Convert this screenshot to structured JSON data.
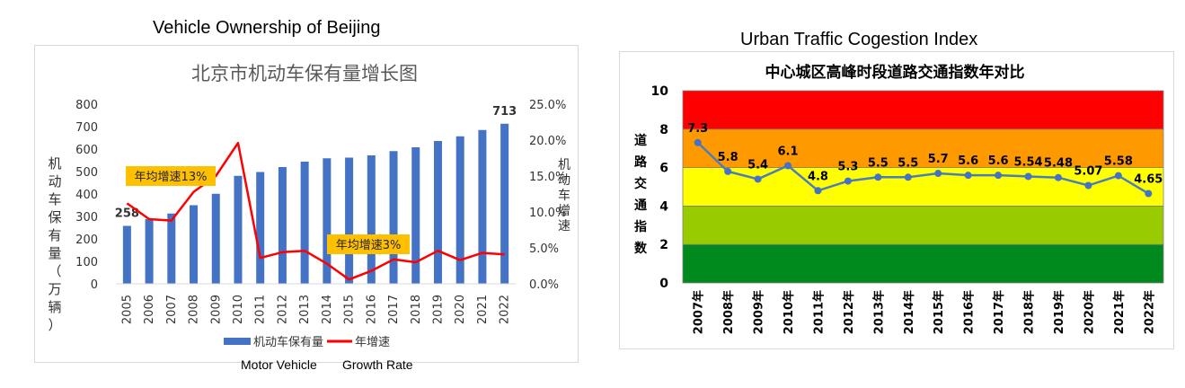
{
  "left": {
    "caption": "Vehicle Ownership of Beijing",
    "note_left": "Motor Vehicle",
    "note_right": "Growth Rate",
    "colors": {
      "bar": "#4472c4",
      "line": "#ff0000",
      "callout": "#ffc000",
      "title": "#595959"
    },
    "chart_data": {
      "type": "bar",
      "title": "北京市机动车保有量增长图",
      "ylabel": "机动车保有量（万辆）",
      "y2label": "机动车增速",
      "categories": [
        "2005",
        "2006",
        "2007",
        "2008",
        "2009",
        "2010",
        "2011",
        "2012",
        "2013",
        "2014",
        "2015",
        "2016",
        "2017",
        "2018",
        "2019",
        "2020",
        "2021",
        "2022"
      ],
      "ylim": [
        0,
        800
      ],
      "y_ticks": [
        "0",
        "100",
        "200",
        "300",
        "400",
        "500",
        "600",
        "700",
        "800"
      ],
      "y2lim": [
        0,
        25
      ],
      "y2_ticks": [
        "0.0%",
        "5.0%",
        "10.0%",
        "15.0%",
        "20.0%",
        "25.0%"
      ],
      "series": [
        {
          "name": "机动车保有量",
          "type": "bar",
          "values": [
            258,
            288,
            313,
            350,
            401,
            481,
            498,
            520,
            544,
            559,
            562,
            572,
            591,
            608,
            636,
            657,
            685,
            713
          ]
        },
        {
          "name": "年增速",
          "type": "line",
          "axis": "right",
          "values": [
            11.2,
            9.0,
            8.8,
            12.8,
            15.0,
            19.6,
            3.6,
            4.4,
            4.6,
            2.8,
            0.6,
            1.8,
            3.4,
            3.0,
            4.6,
            3.3,
            4.3,
            4.1
          ]
        }
      ],
      "data_labels": [
        {
          "index": 0,
          "text": "258"
        },
        {
          "index": 17,
          "text": "713"
        }
      ],
      "annotations": [
        "年均增速13%",
        "年均增速3%"
      ],
      "legend": "bottom"
    }
  },
  "right": {
    "caption": "Urban Traffic Cogestion Index",
    "colors": {
      "line": "#4a7ebb",
      "line_fill": "#4472c4"
    },
    "chart_data": {
      "type": "line",
      "title": "中心城区高峰时段道路交通指数年对比",
      "ylabel": "道路交通指数",
      "categories": [
        "2007年",
        "2008年",
        "2009年",
        "2010年",
        "2011年",
        "2012年",
        "2013年",
        "2014年",
        "2015年",
        "2016年",
        "2017年",
        "2018年",
        "2019年",
        "2020年",
        "2021年",
        "2022年"
      ],
      "ylim": [
        0,
        10
      ],
      "y_ticks": [
        "0",
        "2",
        "4",
        "6",
        "8",
        "10"
      ],
      "bands": [
        {
          "from": 0,
          "to": 2,
          "color": "#008a1e"
        },
        {
          "from": 2,
          "to": 4,
          "color": "#99cc00"
        },
        {
          "from": 4,
          "to": 6,
          "color": "#ffff00"
        },
        {
          "from": 6,
          "to": 8,
          "color": "#ff9900"
        },
        {
          "from": 8,
          "to": 10,
          "color": "#ff0000"
        }
      ],
      "series": [
        {
          "values": [
            7.3,
            5.8,
            5.4,
            6.1,
            4.8,
            5.3,
            5.5,
            5.5,
            5.7,
            5.6,
            5.6,
            5.54,
            5.48,
            5.07,
            5.58,
            4.65
          ]
        }
      ],
      "data_labels": [
        "7.3",
        "5.8",
        "5.4",
        "6.1",
        "4.8",
        "5.3",
        "5.5",
        "5.5",
        "5.7",
        "5.6",
        "5.6",
        "5.54",
        "5.48",
        "5.07",
        "5.58",
        "4.65"
      ]
    }
  }
}
